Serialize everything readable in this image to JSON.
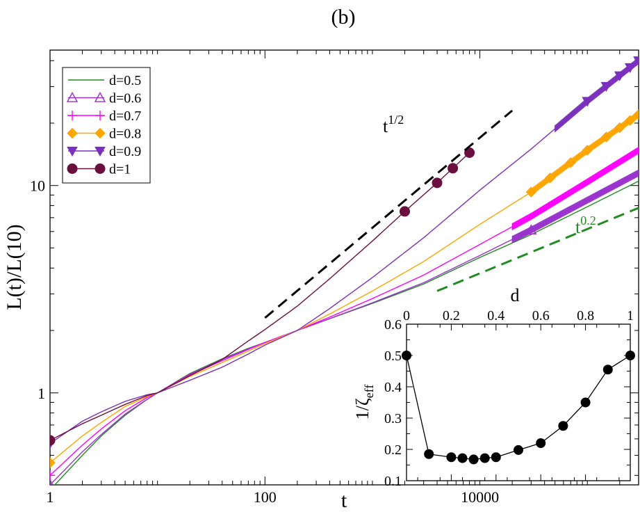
{
  "chart_data": [
    {
      "type": "line",
      "panel_label": "(b)",
      "xlabel": "t",
      "ylabel": "L(t)/L(10)",
      "xscale": "log",
      "yscale": "log",
      "xlim": [
        1,
        300000
      ],
      "ylim": [
        0.36,
        45
      ],
      "x_ticks": [
        {
          "value": 1,
          "label": "1"
        },
        {
          "value": 100,
          "label": "100"
        },
        {
          "value": 10000,
          "label": "10000"
        }
      ],
      "y_ticks": [
        {
          "value": 1,
          "label": "1"
        },
        {
          "value": 10,
          "label": "10"
        }
      ],
      "legend_position": "top-left",
      "series": [
        {
          "name": "d=0.5",
          "label": "d=0.5",
          "color": "#228b22",
          "marker": "none",
          "zeta": 5.6,
          "x": [
            1,
            2,
            3,
            5,
            8,
            10,
            20,
            40,
            70,
            100,
            200,
            400,
            1000,
            3000,
            10000,
            30000,
            100000,
            300000
          ],
          "y": [
            0.34,
            0.5,
            0.62,
            0.78,
            0.93,
            1.0,
            1.24,
            1.46,
            1.64,
            1.75,
            2.0,
            2.28,
            2.7,
            3.35,
            4.5,
            5.8,
            7.9,
            10.5
          ]
        },
        {
          "name": "d=0.6",
          "label": "d=0.6",
          "color": "#9932cc",
          "marker": "triangle-up-open",
          "zeta": 4.5,
          "x": [
            1,
            2,
            3,
            5,
            8,
            10,
            20,
            40,
            70,
            100,
            200,
            400,
            1000,
            3000,
            10000,
            30000,
            100000,
            300000
          ],
          "y": [
            0.36,
            0.52,
            0.63,
            0.79,
            0.93,
            1.0,
            1.23,
            1.45,
            1.63,
            1.75,
            2.0,
            2.28,
            2.72,
            3.4,
            4.6,
            6.1,
            8.5,
            11.5
          ]
        },
        {
          "name": "d=0.7",
          "label": "d=0.7",
          "color": "#ff00ff",
          "marker": "plus",
          "zeta": 3.6,
          "x": [
            1,
            2,
            3,
            5,
            8,
            10,
            20,
            40,
            70,
            100,
            200,
            400,
            1000,
            3000,
            10000,
            30000,
            100000,
            300000
          ],
          "y": [
            0.4,
            0.56,
            0.67,
            0.82,
            0.95,
            1.0,
            1.22,
            1.43,
            1.62,
            1.75,
            2.0,
            2.32,
            2.85,
            3.7,
            5.2,
            7.1,
            10.4,
            14.8
          ]
        },
        {
          "name": "d=0.8",
          "label": "d=0.8",
          "color": "#ffa500",
          "marker": "diamond-filled",
          "zeta": 2.9,
          "x": [
            1,
            2,
            3,
            5,
            8,
            10,
            20,
            40,
            70,
            100,
            200,
            400,
            1000,
            3000,
            10000,
            30000,
            100000,
            300000
          ],
          "y": [
            0.46,
            0.62,
            0.72,
            0.86,
            0.96,
            1.0,
            1.2,
            1.4,
            1.59,
            1.73,
            2.0,
            2.4,
            3.1,
            4.3,
            6.5,
            9.3,
            14.8,
            22.0
          ]
        },
        {
          "name": "d=0.9",
          "label": "d=0.9",
          "color": "#7b2fbe",
          "marker": "triangle-down-filled",
          "zeta": 2.2,
          "x": [
            1,
            2,
            3,
            5,
            8,
            10,
            20,
            40,
            70,
            100,
            200,
            400,
            1000,
            3000,
            10000,
            30000,
            100000,
            300000
          ],
          "y": [
            0.57,
            0.73,
            0.81,
            0.91,
            0.98,
            1.0,
            1.15,
            1.33,
            1.54,
            1.7,
            2.0,
            2.55,
            3.6,
            5.6,
            9.5,
            15.0,
            25.5,
            40.0
          ]
        },
        {
          "name": "d=1",
          "label": "d=1",
          "color": "#6b0f3e",
          "marker": "circle-filled",
          "zeta": 2.0,
          "x": [
            1,
            2,
            3,
            5,
            8,
            10,
            20,
            40,
            70,
            100,
            200,
            400,
            1000,
            2000,
            4000,
            8000
          ],
          "y": [
            0.59,
            0.71,
            0.78,
            0.88,
            0.97,
            1.0,
            1.21,
            1.45,
            1.78,
            2.02,
            2.62,
            3.55,
            5.4,
            7.5,
            10.3,
            14.4
          ]
        }
      ],
      "markers": [
        {
          "series": "d=0.6",
          "x": [
            1,
            30000
          ]
        },
        {
          "series": "d=0.7",
          "x": [
            1
          ]
        },
        {
          "series": "d=0.8",
          "x": [
            1,
            30000,
            45000,
            70000,
            100000,
            150000,
            200000,
            250000,
            300000
          ]
        },
        {
          "series": "d=0.9",
          "x": [
            1,
            100000,
            150000,
            200000,
            250000,
            300000
          ]
        },
        {
          "series": "d=1",
          "x": [
            1,
            2000,
            4000,
            5600,
            8000
          ]
        }
      ],
      "reference_lines": [
        {
          "label_base": "t",
          "label_exp": "1/2",
          "slope": 0.5,
          "x": [
            100,
            20000
          ],
          "y": [
            2.3,
            23
          ],
          "color": "#000000",
          "style": "dashed"
        },
        {
          "label_base": "t",
          "label_exp": "0.2",
          "slope": 0.2,
          "x": [
            4000,
            300000
          ],
          "y": [
            3.1,
            7.8
          ],
          "color": "#228b22",
          "style": "dashed"
        }
      ]
    },
    {
      "type": "line",
      "role": "inset",
      "inset_position": "bottom-right",
      "xlabel": "d",
      "ylabel": "1/ζ",
      "ylabel_sub": "eff",
      "xlim": [
        0,
        1
      ],
      "ylim": [
        0.1,
        0.6
      ],
      "x_tick_position": "top",
      "x_ticks": [
        0,
        0.2,
        0.4,
        0.6,
        0.8,
        1
      ],
      "x_tick_labels": [
        "0",
        "0.2",
        "0.4",
        "0.6",
        "0.8",
        "1"
      ],
      "y_ticks": [
        0.1,
        0.2,
        0.3,
        0.4,
        0.5,
        0.6
      ],
      "y_tick_labels": [
        "0.1",
        "0.2",
        "0.3",
        "0.4",
        "0.5",
        "0.6"
      ],
      "series": [
        {
          "name": "1/zeta_eff",
          "color": "#000000",
          "marker": "circle-filled",
          "x": [
            0,
            0.1,
            0.2,
            0.25,
            0.3,
            0.35,
            0.4,
            0.5,
            0.6,
            0.7,
            0.8,
            0.9,
            1.0
          ],
          "y": [
            0.5,
            0.185,
            0.175,
            0.172,
            0.168,
            0.172,
            0.175,
            0.198,
            0.22,
            0.275,
            0.35,
            0.455,
            0.5
          ]
        }
      ]
    }
  ]
}
